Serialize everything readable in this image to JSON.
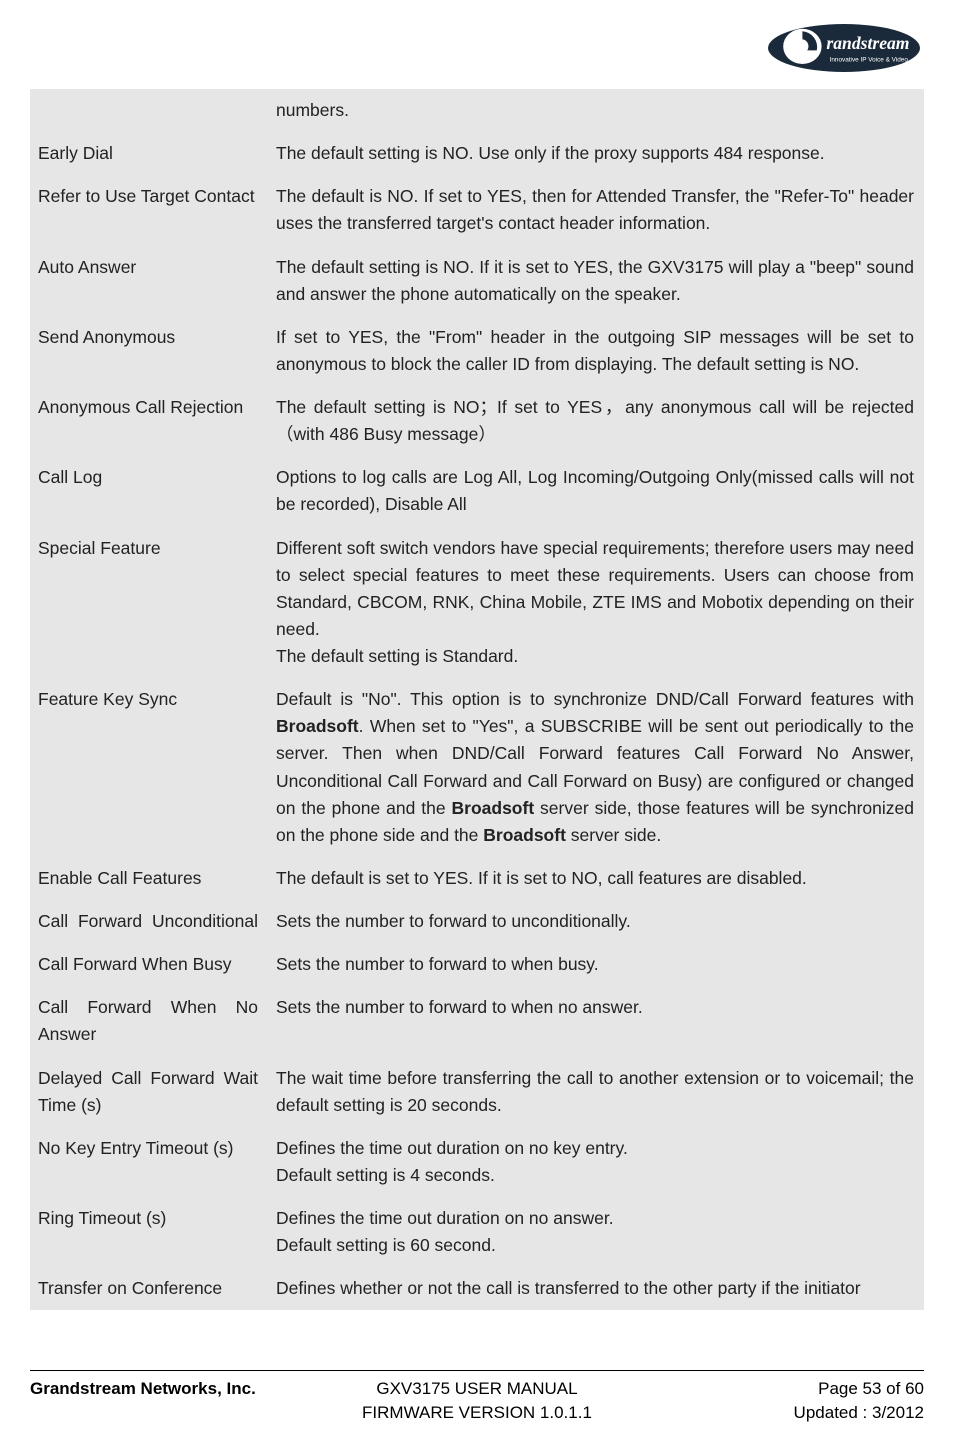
{
  "brand": {
    "name": "Grandstream",
    "tagline": "Innovative IP Voice & Video"
  },
  "colors": {
    "row_bg": "#e6e6e6",
    "text": "#222222",
    "page_bg": "#ffffff",
    "rule": "#000000",
    "logo_white": "#ffffff",
    "logo_dark": "#1b2a3a"
  },
  "table": {
    "rows": [
      {
        "label": "",
        "desc_parts": [
          {
            "t": "numbers.",
            "b": false
          }
        ]
      },
      {
        "label": "Early Dial",
        "desc_parts": [
          {
            "t": "The default setting is NO. Use only if the proxy supports 484 response.",
            "b": false
          }
        ]
      },
      {
        "label": "Refer to Use Target Contact",
        "desc_parts": [
          {
            "t": "The default is NO. If set to YES, then for Attended Transfer, the \"Refer-To\" header uses the transferred target's contact header information.",
            "b": false
          }
        ]
      },
      {
        "label": "Auto Answer",
        "desc_parts": [
          {
            "t": "The default setting is NO. If it is set to YES, the GXV3175 will play a \"beep\" sound and answer the phone automatically on the speaker.",
            "b": false
          }
        ]
      },
      {
        "label": "Send Anonymous",
        "desc_parts": [
          {
            "t": "If set to YES, the \"From\" header in the outgoing SIP messages will be set to anonymous to block the caller ID from displaying. The default setting is NO.",
            "b": false
          }
        ]
      },
      {
        "label": "Anonymous Call Rejection",
        "desc_parts": [
          {
            "t": "The default setting is NO；If set to YES，any anonymous call will be rejected（with 486 Busy message）",
            "b": false
          }
        ]
      },
      {
        "label": "Call Log",
        "desc_parts": [
          {
            "t": "Options to log calls are Log All, Log Incoming/Outgoing Only(missed calls will not be recorded), Disable All",
            "b": false
          }
        ]
      },
      {
        "label": "Special Feature",
        "desc_parts": [
          {
            "t": "Different soft switch vendors have special requirements; therefore users may need to select special features to meet these requirements. Users can choose from Standard, CBCOM, RNK, China Mobile, ZTE IMS and Mobotix depending on their need.",
            "b": false,
            "block": true
          },
          {
            "t": "The default setting is Standard.",
            "b": false,
            "block": true
          }
        ]
      },
      {
        "label": "Feature Key Sync",
        "desc_parts": [
          {
            "t": "Default is \"No\". This option is to synchronize DND/Call Forward features with ",
            "b": false
          },
          {
            "t": "Broadsoft",
            "b": true
          },
          {
            "t": ". When set to \"Yes\", a SUBSCRIBE will be sent out periodically to the server. Then when DND/Call Forward features Call Forward No Answer, Unconditional Call Forward and Call Forward on Busy) are configured or changed on the phone and the ",
            "b": false
          },
          {
            "t": "Broadsoft",
            "b": true
          },
          {
            "t": " server side, those features will be synchronized on the phone side and the ",
            "b": false
          },
          {
            "t": "Broadsoft",
            "b": true
          },
          {
            "t": " server side.",
            "b": false
          }
        ]
      },
      {
        "label": "Enable Call Features",
        "desc_parts": [
          {
            "t": "The default is set to YES. If it is set to NO, call features are disabled.",
            "b": false
          }
        ]
      },
      {
        "label": "Call Forward Unconditional",
        "label_justify": true,
        "desc_parts": [
          {
            "t": "Sets the number to forward to unconditionally.",
            "b": false
          }
        ]
      },
      {
        "label": "Call Forward When Busy",
        "desc_parts": [
          {
            "t": "Sets the number to forward to when busy.",
            "b": false
          }
        ]
      },
      {
        "label": "Call Forward When No Answer",
        "desc_parts": [
          {
            "t": "Sets the number to forward to when no answer.",
            "b": false
          }
        ]
      },
      {
        "label": "Delayed Call Forward Wait Time (s)",
        "desc_parts": [
          {
            "t": "The wait time before transferring the call to another extension or to voicemail; the default setting is 20 seconds.",
            "b": false
          }
        ]
      },
      {
        "label": "No Key Entry Timeout (s)",
        "desc_parts": [
          {
            "t": "Defines the time out duration on no key entry.",
            "b": false,
            "block": true
          },
          {
            "t": "Default setting is 4 seconds.",
            "b": false,
            "block": true
          }
        ]
      },
      {
        "label": "Ring Timeout (s)",
        "desc_parts": [
          {
            "t": "Defines the time out duration on no answer.",
            "b": false,
            "block": true
          },
          {
            "t": "Default setting is 60 second.",
            "b": false,
            "block": true
          }
        ]
      },
      {
        "label": "Transfer on Conference",
        "desc_parts": [
          {
            "t": "Defines whether or not the call is transferred to the other party if the initiator",
            "b": false
          }
        ]
      }
    ]
  },
  "footer": {
    "company": "Grandstream Networks, Inc.",
    "center1": "GXV3175 USER MANUAL",
    "center2": "FIRMWARE VERSION 1.0.1.1",
    "right1": "Page 53 of 60",
    "right2": "Updated : 3/2012"
  }
}
